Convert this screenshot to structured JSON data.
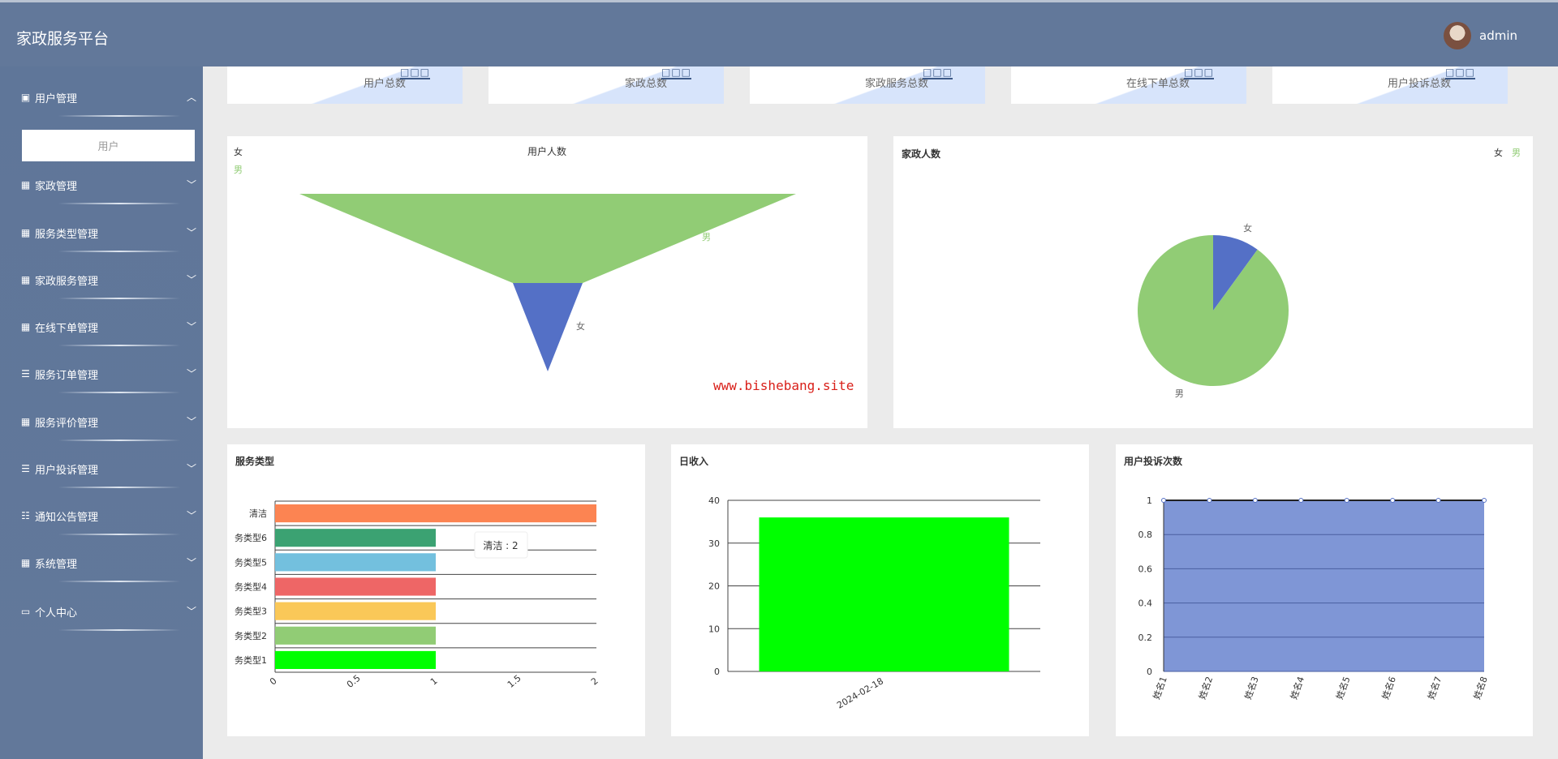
{
  "header": {
    "title": "家政服务平台",
    "username": "admin"
  },
  "sidebar": {
    "items": [
      {
        "label": "用户管理",
        "icon": "clipboard-icon",
        "expanded": true
      },
      {
        "label": "家政管理",
        "icon": "grid-icon"
      },
      {
        "label": "服务类型管理",
        "icon": "grid-icon"
      },
      {
        "label": "家政服务管理",
        "icon": "grid-icon"
      },
      {
        "label": "在线下单管理",
        "icon": "grid-icon"
      },
      {
        "label": "服务订单管理",
        "icon": "list-icon"
      },
      {
        "label": "服务评价管理",
        "icon": "grid-icon"
      },
      {
        "label": "用户投诉管理",
        "icon": "list-icon"
      },
      {
        "label": "通知公告管理",
        "icon": "sliders-icon"
      },
      {
        "label": "系统管理",
        "icon": "grid-icon"
      },
      {
        "label": "个人中心",
        "icon": "card-icon"
      }
    ],
    "subitem": "用户"
  },
  "stats": [
    {
      "label": "用户总数",
      "value": "□□□"
    },
    {
      "label": "家政总数",
      "value": "□□□"
    },
    {
      "label": "家政服务总数",
      "value": "□□□"
    },
    {
      "label": "在线下单总数",
      "value": "□□□"
    },
    {
      "label": "用户投诉总数",
      "value": "□□□"
    }
  ],
  "watermark": "www.bishebang.site",
  "chart_data": [
    {
      "type": "funnel",
      "title": "用户人数",
      "legend": [
        "女",
        "男"
      ],
      "legend_position": "top-left",
      "categories": [
        "男",
        "女"
      ],
      "colors": [
        "#91cc75",
        "#5470c6"
      ]
    },
    {
      "type": "pie",
      "title": "家政人数",
      "legend": [
        "女",
        "男"
      ],
      "legend_position": "top-right",
      "slices": [
        {
          "name": "女",
          "value": 1
        },
        {
          "name": "男",
          "value": 9
        }
      ],
      "colors": [
        "#5470c6",
        "#91cc75"
      ]
    },
    {
      "type": "bar",
      "orientation": "horizontal",
      "title": "服务类型",
      "categories": [
        "务类型1",
        "务类型2",
        "务类型3",
        "务类型4",
        "务类型5",
        "务类型6",
        "清洁"
      ],
      "values": [
        1,
        1,
        1,
        1,
        1,
        1,
        2
      ],
      "colors": [
        "#00ff00",
        "#91cc75",
        "#fac858",
        "#ee6666",
        "#73c0de",
        "#3ba272",
        "#fc8452"
      ],
      "xlim": [
        0,
        2
      ],
      "xticks": [
        "0",
        "0.5",
        "1",
        "1.5",
        "2"
      ],
      "tooltip": "清洁 : 2"
    },
    {
      "type": "bar",
      "title": "日收入",
      "categories": [
        "2024-02-18"
      ],
      "values": [
        36
      ],
      "ylim": [
        0,
        40
      ],
      "yticks": [
        "0",
        "10",
        "20",
        "30",
        "40"
      ],
      "color": "#00ff00"
    },
    {
      "type": "area",
      "title": "用户投诉次数",
      "categories": [
        "姓名1",
        "姓名2",
        "姓名3",
        "姓名4",
        "姓名5",
        "姓名6",
        "姓名7",
        "姓名8"
      ],
      "values": [
        1,
        1,
        1,
        1,
        1,
        1,
        1,
        1
      ],
      "ylim": [
        0,
        1
      ],
      "yticks": [
        "0",
        "0.2",
        "0.4",
        "0.6",
        "0.8",
        "1"
      ],
      "color": "#7f96d6"
    }
  ]
}
